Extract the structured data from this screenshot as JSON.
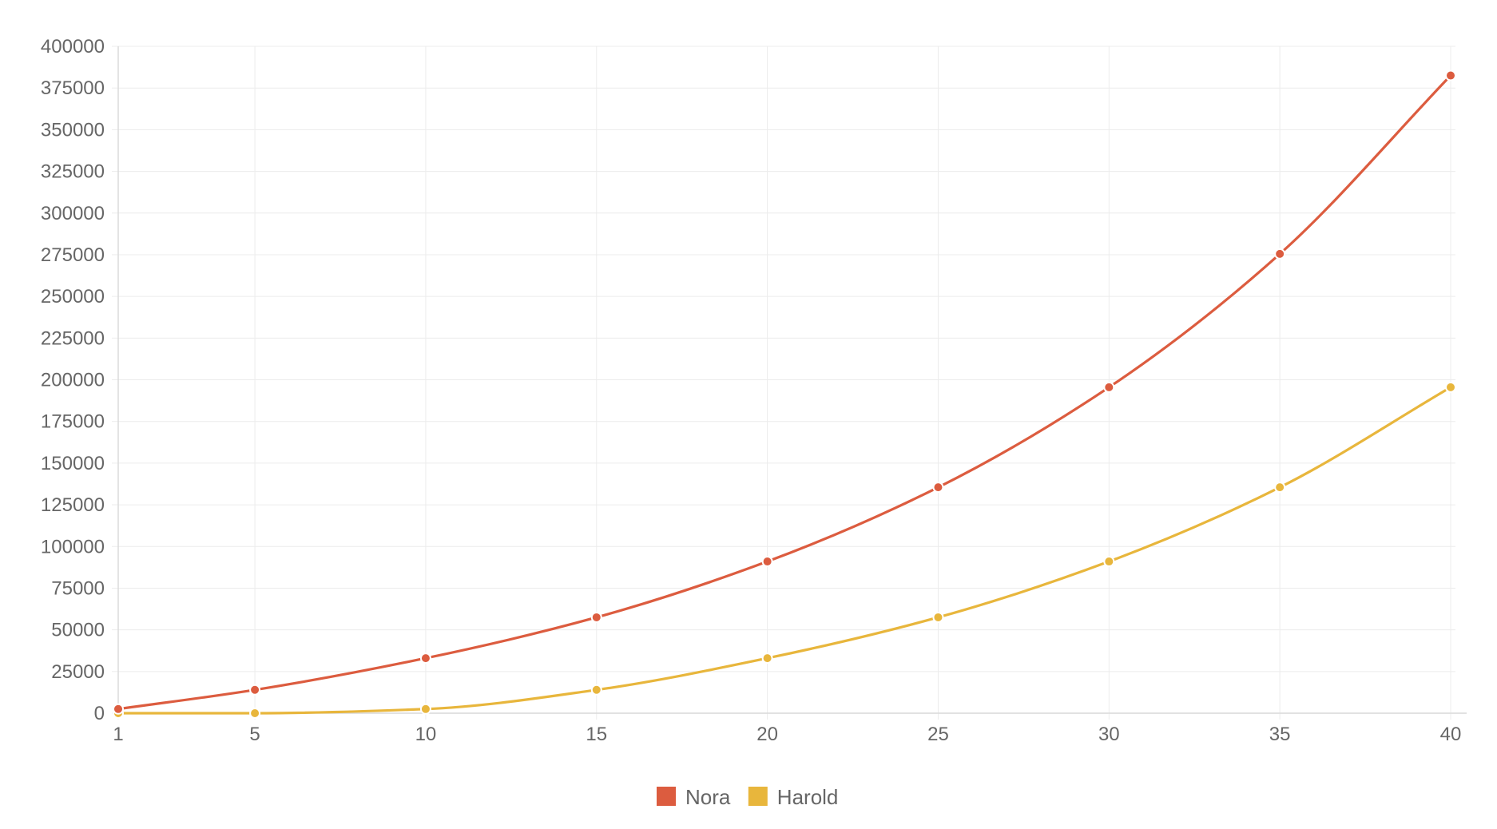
{
  "chart_data": {
    "type": "line",
    "x": [
      1,
      5,
      10,
      15,
      20,
      25,
      30,
      35,
      40
    ],
    "x_ticks": [
      "1",
      "5",
      "10",
      "15",
      "20",
      "25",
      "30",
      "35",
      "40"
    ],
    "ylim": [
      0,
      400000
    ],
    "y_ticks": [
      "0",
      "25000",
      "50000",
      "75000",
      "100000",
      "125000",
      "150000",
      "175000",
      "200000",
      "225000",
      "250000",
      "275000",
      "300000",
      "325000",
      "350000",
      "375000",
      "400000"
    ],
    "grid": true,
    "legend_position": "bottom-center",
    "series": [
      {
        "name": "Nora",
        "color": "#dc5c3f",
        "values": [
          2500,
          14000,
          33000,
          57500,
          91000,
          135500,
          195500,
          275500,
          382500
        ]
      },
      {
        "name": "Harold",
        "color": "#e8b63c",
        "values": [
          0,
          0,
          2500,
          14000,
          33000,
          57500,
          91000,
          135500,
          195500
        ]
      }
    ]
  }
}
